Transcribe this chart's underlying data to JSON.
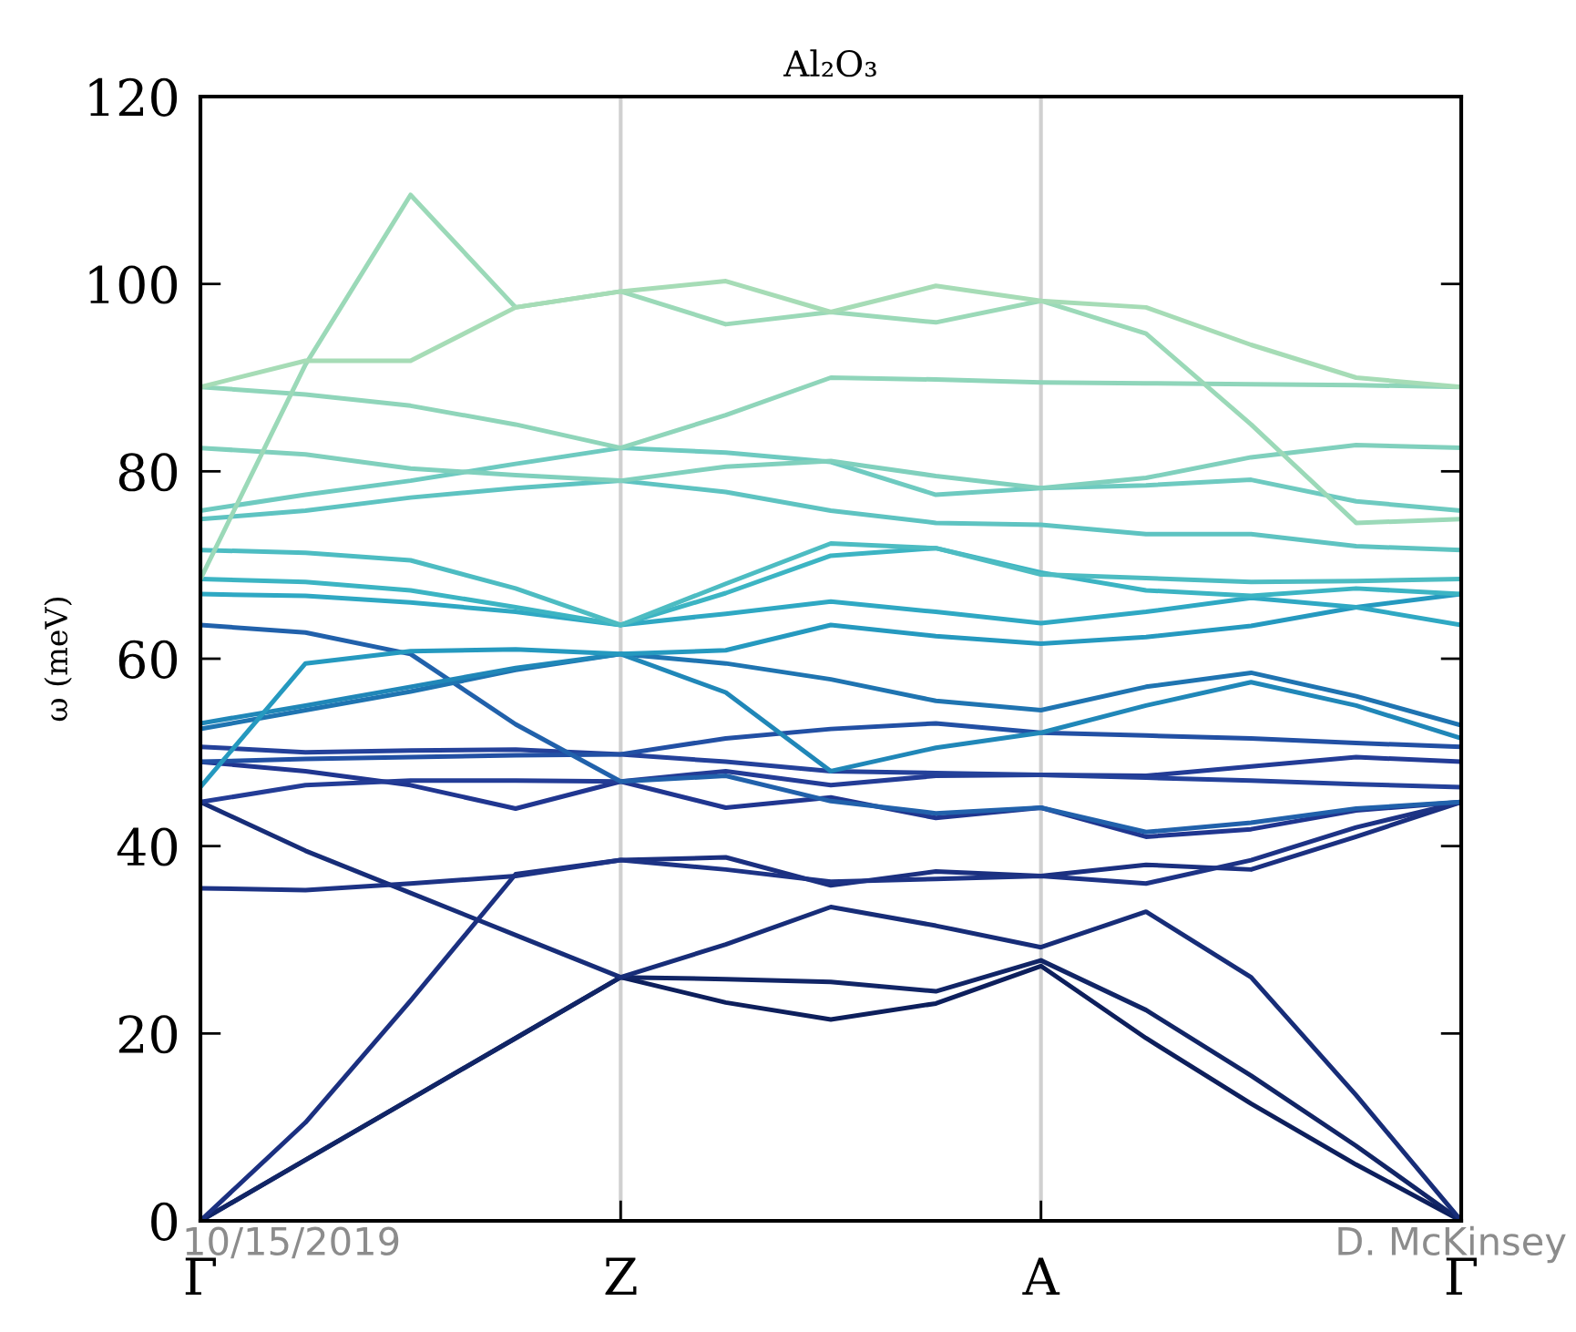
{
  "chart_data": {
    "type": "line",
    "title": "Al₂O₃",
    "ylabel": "ω (meV)",
    "categories": [
      "Γ",
      null,
      null,
      null,
      "Z",
      null,
      null,
      null,
      "A",
      null,
      null,
      null,
      "Γ"
    ],
    "ylim": [
      0,
      120
    ],
    "yticks": [
      0,
      20,
      40,
      60,
      80,
      100,
      120
    ],
    "line_style": "solid",
    "ref_lines": [
      {
        "axis": "x",
        "value": "Z",
        "color": "#d0d0d0"
      },
      {
        "axis": "x",
        "value": "A",
        "color": "#d0d0d0"
      }
    ],
    "series": [
      {
        "color": "#0d1f5c",
        "values": [
          0,
          6.5,
          13,
          19.5,
          26,
          23.3,
          21.5,
          23.2,
          27.2,
          19.5,
          12.5,
          6,
          0
        ]
      },
      {
        "color": "#112566",
        "values": [
          0,
          6.5,
          13,
          19.5,
          26,
          25.8,
          25.5,
          24.5,
          27.8,
          22.5,
          15.5,
          8,
          0
        ]
      },
      {
        "color": "#172d78",
        "values": [
          44.7,
          39.5,
          35,
          30.5,
          26,
          29.5,
          33.5,
          31.5,
          29.2,
          33,
          26,
          13.4,
          0
        ]
      },
      {
        "color": "#1b3080",
        "values": [
          0,
          10.5,
          23.5,
          37,
          38.5,
          38.8,
          35.8,
          37.3,
          36.8,
          38,
          37.5,
          41,
          44.7
        ]
      },
      {
        "color": "#1d3385",
        "values": [
          35.5,
          35.3,
          36,
          36.8,
          38.5,
          37.5,
          36.2,
          36.5,
          36.8,
          36,
          38.5,
          42,
          44.7
        ]
      },
      {
        "color": "#203690",
        "values": [
          49,
          48,
          46.5,
          44,
          46.9,
          44.1,
          45.2,
          43,
          44.1,
          41,
          41.8,
          43.8,
          44.7
        ]
      },
      {
        "color": "#233c96",
        "values": [
          44.7,
          46.5,
          47,
          47,
          46.9,
          48,
          46.5,
          47.5,
          47.6,
          47.5,
          48.5,
          49.5,
          49
        ]
      },
      {
        "color": "#24419a",
        "values": [
          50.6,
          50,
          50.2,
          50.3,
          49.8,
          49,
          48,
          47.8,
          47.6,
          47.3,
          47,
          46.6,
          46.3
        ]
      },
      {
        "color": "#2250a4",
        "values": [
          49,
          49.3,
          49.5,
          49.7,
          49.8,
          51.5,
          52.5,
          53.1,
          52.1,
          51.8,
          51.5,
          51,
          50.6
        ]
      },
      {
        "color": "#2161ab",
        "values": [
          63.6,
          62.8,
          60.5,
          53,
          46.9,
          47.5,
          44.8,
          43.5,
          44.1,
          41.5,
          42.5,
          44,
          44.7
        ]
      },
      {
        "color": "#1f74b1",
        "values": [
          52.5,
          54.5,
          56.5,
          58.8,
          60.5,
          59.5,
          57.8,
          55.5,
          54.5,
          57,
          58.5,
          56,
          52.9
        ]
      },
      {
        "color": "#2087b8",
        "values": [
          53.1,
          55,
          57,
          59,
          60.5,
          56.4,
          48,
          50.5,
          52.1,
          55,
          57.5,
          55,
          51.5
        ]
      },
      {
        "color": "#2599bf",
        "values": [
          46.3,
          59.5,
          60.8,
          61,
          60.5,
          60.9,
          63.6,
          62.4,
          61.6,
          62.3,
          63.5,
          65.5,
          66.9
        ]
      },
      {
        "color": "#2fa8c3",
        "values": [
          66.9,
          66.7,
          66,
          65,
          63.6,
          64.8,
          66.1,
          65,
          63.8,
          65,
          66.5,
          65.5,
          63.6
        ]
      },
      {
        "color": "#3cb4c3",
        "values": [
          68.5,
          68.2,
          67.3,
          65.5,
          63.6,
          67,
          71,
          71.8,
          69.2,
          67.3,
          66.7,
          67.5,
          66.9
        ]
      },
      {
        "color": "#4dbcc2",
        "values": [
          71.6,
          71.3,
          70.5,
          67.5,
          63.6,
          68,
          72.3,
          71.8,
          69,
          68.6,
          68.2,
          68.3,
          68.5
        ]
      },
      {
        "color": "#5ec3c1",
        "values": [
          74.9,
          75.8,
          77.2,
          78.2,
          79,
          77.8,
          75.8,
          74.5,
          74.3,
          73.3,
          73.3,
          72,
          71.6
        ]
      },
      {
        "color": "#6ecac0",
        "values": [
          75.8,
          77.5,
          79,
          80.8,
          82.5,
          82,
          81,
          77.5,
          78.2,
          78.5,
          79.1,
          76.8,
          75.8
        ]
      },
      {
        "color": "#80d0bd",
        "values": [
          82.5,
          81.8,
          80.3,
          79.6,
          79,
          80.5,
          81.1,
          79.5,
          78.2,
          79.3,
          81.5,
          82.8,
          82.5
        ]
      },
      {
        "color": "#8fd5ba",
        "values": [
          89,
          88.2,
          87,
          85,
          82.5,
          86,
          90,
          89.8,
          89.5,
          89.4,
          89.3,
          89.2,
          89
        ]
      },
      {
        "color": "#9bd9b8",
        "values": [
          68.5,
          91.4,
          109.5,
          97.5,
          99.2,
          95.7,
          97,
          95.9,
          98.2,
          94.7,
          85,
          74.5,
          74.9
        ]
      },
      {
        "color": "#a6dcb6",
        "values": [
          89,
          91.8,
          91.8,
          97.5,
          99.2,
          100.3,
          97,
          99.8,
          98.2,
          97.5,
          93.5,
          90,
          89
        ]
      }
    ],
    "annotations": [
      "10/15/2019",
      "D. McKinsey"
    ]
  }
}
